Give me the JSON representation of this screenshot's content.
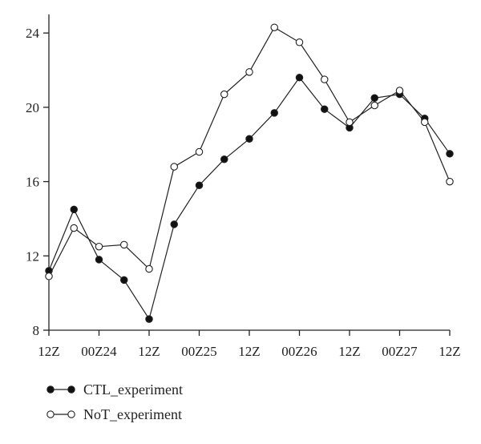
{
  "chart_data": {
    "type": "line",
    "title": "",
    "xlabel": "",
    "ylabel": "",
    "x_tick_labels": [
      "12Z",
      "00Z24",
      "12Z",
      "00Z25",
      "12Z",
      "00Z26",
      "12Z",
      "00Z27",
      "12Z"
    ],
    "xlim": [
      0,
      8
    ],
    "ylim": [
      8,
      25
    ],
    "y_ticks": [
      8,
      12,
      16,
      20,
      24
    ],
    "grid": false,
    "legend_position": "bottom-left",
    "series": [
      {
        "name": "CTL_experiment",
        "marker": "filled-circle",
        "x": [
          0,
          0.5,
          1,
          1.5,
          2,
          2.5,
          3,
          3.5,
          4,
          4.5,
          5,
          5.5,
          6,
          6.5,
          7,
          7.5,
          8
        ],
        "y": [
          11.2,
          14.5,
          11.8,
          10.7,
          8.6,
          13.7,
          15.8,
          17.2,
          18.3,
          19.7,
          21.6,
          19.9,
          18.9,
          20.5,
          20.7,
          19.4,
          17.5
        ]
      },
      {
        "name": "NoT_experiment",
        "marker": "open-circle",
        "x": [
          0,
          0.5,
          1,
          1.5,
          2,
          2.5,
          3,
          3.5,
          4,
          4.5,
          5,
          5.5,
          6,
          6.5,
          7,
          7.5,
          8
        ],
        "y": [
          10.9,
          13.5,
          12.5,
          12.6,
          11.3,
          16.8,
          17.6,
          20.7,
          21.9,
          24.3,
          23.5,
          21.5,
          19.2,
          20.1,
          20.9,
          19.2,
          16.0
        ]
      }
    ],
    "colors": {
      "axis": "#222222",
      "line": "#222222",
      "filled_marker": "#111111",
      "open_marker_fill": "#ffffff"
    }
  }
}
